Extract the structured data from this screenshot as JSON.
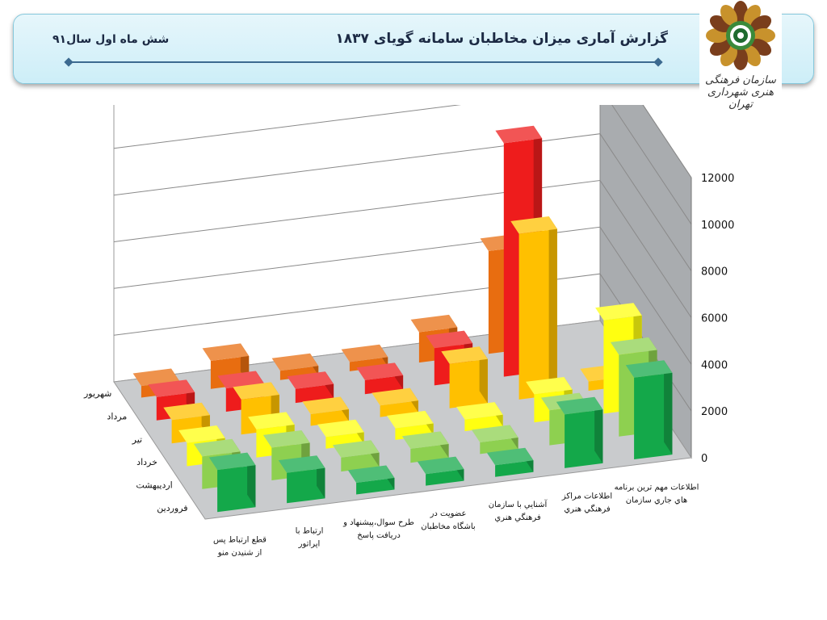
{
  "header": {
    "title": "گزارش آماری میزان مخاطبان سامانه گویای ۱۸۳۷",
    "subtitle": "شش ماه اول سال۹۱",
    "logo_text": "سازمان فرهنگی هنری شهرداری تهران"
  },
  "chart_data": {
    "type": "bar",
    "subtype": "3d-clustered-columns",
    "title": "",
    "xlabel": "",
    "ylabel": "",
    "ylim": [
      0,
      12000
    ],
    "yticks": [
      "0",
      "2000",
      "4000",
      "6000",
      "8000",
      "10000",
      "12000"
    ],
    "grid": true,
    "categories": [
      "قطع ارتباط پس از شنیدن منو",
      "ارتباط با اپراتور",
      "طرح سوال،پیشنهاد و دریافت پاسخ",
      "عضویت در باشگاه مخاطبان",
      "آشنايي با سازمان فرهنگي هنري",
      "اطلاعات مراكز فرهنگي هنري",
      "اطلاعات مهم ترين برنامه هاي جاري سازمان"
    ],
    "series": [
      {
        "name": "فروردین",
        "color": "#14a84a",
        "values": [
          1800,
          1300,
          500,
          500,
          500,
          2300,
          3500
        ]
      },
      {
        "name": "اردیبهشت",
        "color": "#8ed050",
        "values": [
          1400,
          1400,
          600,
          600,
          500,
          1500,
          3500
        ]
      },
      {
        "name": "خرداد",
        "color": "#ffff10",
        "values": [
          1000,
          1200,
          500,
          500,
          500,
          1200,
          4000
        ]
      },
      {
        "name": "تیر",
        "color": "#ffc000",
        "values": [
          1000,
          1500,
          500,
          500,
          1900,
          7100,
          400
        ]
      },
      {
        "name": "مرداد",
        "color": "#ee1c1c",
        "values": [
          1000,
          1000,
          600,
          600,
          1600,
          10000,
          0
        ]
      },
      {
        "name": "شهریور",
        "color": "#e86d10",
        "values": [
          500,
          1200,
          400,
          400,
          1300,
          4400,
          0
        ]
      }
    ]
  },
  "colors": {
    "banner_border": "#86c8dc",
    "rule": "#3c6a90"
  }
}
